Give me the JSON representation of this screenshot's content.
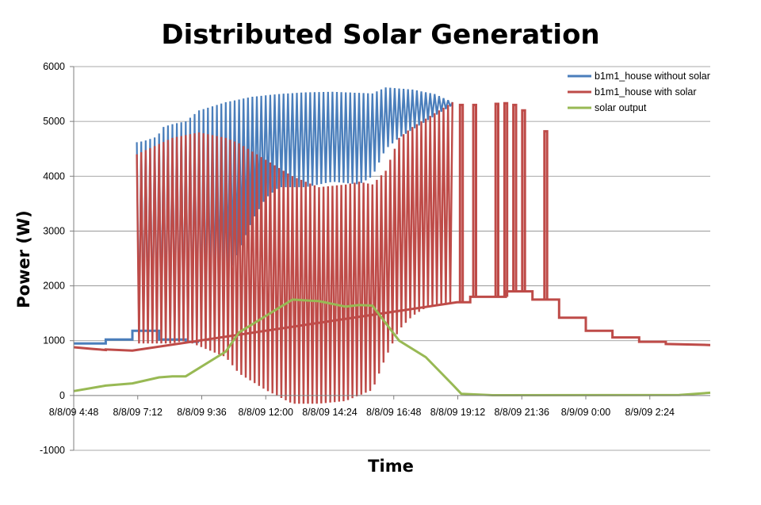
{
  "chart_data": {
    "type": "line",
    "title": "Distributed Solar Generation",
    "xlabel": "Time",
    "ylabel": "Power (W)",
    "ylim": [
      -1000,
      6000
    ],
    "xlim": [
      "8/8/09 4:48",
      "8/9/09 4:40"
    ],
    "yticks": [
      "-1000",
      "0",
      "1000",
      "2000",
      "3000",
      "4000",
      "5000",
      "6000"
    ],
    "xticks": [
      "8/8/09 4:48",
      "8/8/09 7:12",
      "8/8/09 9:36",
      "8/8/09 12:00",
      "8/8/09 14:24",
      "8/8/09 16:48",
      "8/8/09 19:12",
      "8/8/09 21:36",
      "8/9/09 0:00",
      "8/9/09 2:24"
    ],
    "grid": "horizontal",
    "legend_position": "top-right",
    "series": [
      {
        "name": "b1m1_house without solar",
        "color": "#4a7ebb",
        "baseline": [
          [
            "8/8/09 4:48",
            950
          ],
          [
            "8/8/09 6:00",
            950
          ],
          [
            "8/8/09 6:00",
            1020
          ],
          [
            "8/8/09 7:00",
            1020
          ],
          [
            "8/8/09 7:00",
            1180
          ],
          [
            "8/8/09 8:00",
            1180
          ],
          [
            "8/8/09 8:00",
            1020
          ],
          [
            "8/8/09 9:00",
            1020
          ],
          [
            "8/8/09 9:00",
            980
          ],
          [
            "8/8/09 9:30",
            980
          ]
        ],
        "peaks": [
          [
            "8/8/09 7:10",
            4620
          ],
          [
            "8/8/09 7:25",
            4640
          ],
          [
            "8/8/09 7:40",
            4680
          ],
          [
            "8/8/09 7:55",
            4720
          ],
          [
            "8/8/09 8:10",
            4900
          ],
          [
            "8/8/09 8:30",
            4950
          ],
          [
            "8/8/09 9:00",
            5000
          ],
          [
            "8/8/09 9:30",
            5200
          ],
          [
            "8/8/09 10:30",
            5350
          ],
          [
            "8/8/09 11:30",
            5450
          ],
          [
            "8/8/09 12:30",
            5500
          ],
          [
            "8/8/09 13:30",
            5530
          ],
          [
            "8/8/09 14:30",
            5540
          ],
          [
            "8/8/09 15:30",
            5520
          ],
          [
            "8/8/09 16:00",
            5510
          ],
          [
            "8/8/09 16:30",
            5620
          ],
          [
            "8/8/09 17:30",
            5580
          ],
          [
            "8/8/09 18:20",
            5500
          ],
          [
            "8/8/09 19:00",
            5350
          ]
        ],
        "troughs": [
          [
            "8/8/09 7:10",
            1180
          ],
          [
            "8/8/09 8:00",
            1180
          ],
          [
            "8/8/09 9:30",
            1000
          ],
          [
            "8/8/09 10:30",
            2100
          ],
          [
            "8/8/09 11:30",
            3200
          ],
          [
            "8/8/09 12:00",
            3600
          ],
          [
            "8/8/09 12:30",
            3800
          ],
          [
            "8/8/09 13:30",
            3800
          ],
          [
            "8/8/09 14:30",
            3900
          ],
          [
            "8/8/09 15:30",
            3850
          ],
          [
            "8/8/09 16:00",
            4000
          ],
          [
            "8/8/09 16:30",
            4500
          ],
          [
            "8/8/09 17:00",
            4700
          ],
          [
            "8/8/09 18:00",
            5000
          ],
          [
            "8/8/09 19:00",
            5300
          ]
        ]
      },
      {
        "name": "b1m1_house with solar",
        "color": "#be4b48",
        "points": [
          [
            "8/8/09 4:48",
            880
          ],
          [
            "8/8/09 5:30",
            850
          ],
          [
            "8/8/09 6:00",
            830
          ],
          [
            "8/8/09 6:00",
            840
          ],
          [
            "8/8/09 7:00",
            820
          ],
          [
            "8/8/09 19:10",
            1700
          ],
          [
            "8/8/09 19:40",
            1700
          ],
          [
            "8/8/09 19:40",
            1800
          ],
          [
            "8/8/09 21:00",
            1800
          ],
          [
            "8/8/09 21:00",
            1900
          ],
          [
            "8/8/09 22:00",
            1900
          ],
          [
            "8/8/09 22:00",
            1750
          ],
          [
            "8/8/09 23:00",
            1750
          ],
          [
            "8/8/09 23:00",
            1420
          ],
          [
            "8/9/09 0:00",
            1420
          ],
          [
            "8/9/09 0:00",
            1180
          ],
          [
            "8/9/09 1:00",
            1180
          ],
          [
            "8/9/09 1:00",
            1060
          ],
          [
            "8/9/09 2:00",
            1060
          ],
          [
            "8/9/09 2:00",
            980
          ],
          [
            "8/9/09 3:00",
            980
          ],
          [
            "8/9/09 3:00",
            940
          ],
          [
            "8/9/09 4:40",
            920
          ]
        ],
        "peaks": [
          [
            "8/8/09 7:10",
            4400
          ],
          [
            "8/8/09 8:30",
            4700
          ],
          [
            "8/8/09 9:30",
            4800
          ],
          [
            "8/8/09 10:30",
            4700
          ],
          [
            "8/8/09 11:00",
            4600
          ],
          [
            "8/8/09 12:00",
            4300
          ],
          [
            "8/8/09 13:00",
            4000
          ],
          [
            "8/8/09 14:00",
            3800
          ],
          [
            "8/8/09 15:00",
            3850
          ],
          [
            "8/8/09 15:30",
            3900
          ],
          [
            "8/8/09 16:00",
            3850
          ],
          [
            "8/8/09 16:30",
            4100
          ],
          [
            "8/8/09 17:00",
            4700
          ],
          [
            "8/8/09 17:30",
            4900
          ],
          [
            "8/8/09 18:30",
            5200
          ],
          [
            "8/8/09 19:00",
            5350
          ]
        ],
        "troughs": [
          [
            "8/8/09 7:10",
            950
          ],
          [
            "8/8/09 8:30",
            950
          ],
          [
            "8/8/09 9:00",
            1000
          ],
          [
            "8/8/09 10:30",
            700
          ],
          [
            "8/8/09 11:00",
            400
          ],
          [
            "8/8/09 12:00",
            100
          ],
          [
            "8/8/09 13:00",
            -150
          ],
          [
            "8/8/09 14:00",
            -150
          ],
          [
            "8/8/09 15:00",
            -100
          ],
          [
            "8/8/09 15:30",
            0
          ],
          [
            "8/8/09 16:00",
            100
          ],
          [
            "8/8/09 16:30",
            700
          ],
          [
            "8/8/09 17:00",
            1200
          ],
          [
            "8/8/09 17:30",
            1450
          ],
          [
            "8/8/09 18:00",
            1600
          ],
          [
            "8/8/09 19:00",
            1700
          ]
        ],
        "evening_spikes": [
          [
            "8/8/09 19:20",
            5300
          ],
          [
            "8/8/09 19:50",
            5300
          ],
          [
            "8/8/09 20:40",
            5320
          ],
          [
            "8/8/09 21:00",
            5330
          ],
          [
            "8/8/09 21:20",
            5300
          ],
          [
            "8/8/09 21:40",
            5200
          ],
          [
            "8/8/09 22:30",
            4820
          ]
        ]
      },
      {
        "name": "solar output",
        "color": "#98b954",
        "points": [
          [
            "8/8/09 4:48",
            80
          ],
          [
            "8/8/09 6:00",
            180
          ],
          [
            "8/8/09 7:00",
            220
          ],
          [
            "8/8/09 8:00",
            330
          ],
          [
            "8/8/09 8:30",
            350
          ],
          [
            "8/8/09 9:00",
            350
          ],
          [
            "8/8/09 9:30",
            500
          ],
          [
            "8/8/09 10:30",
            800
          ],
          [
            "8/8/09 11:00",
            1150
          ],
          [
            "8/8/09 12:00",
            1450
          ],
          [
            "8/8/09 12:30",
            1600
          ],
          [
            "8/8/09 13:00",
            1750
          ],
          [
            "8/8/09 14:00",
            1720
          ],
          [
            "8/8/09 15:00",
            1620
          ],
          [
            "8/8/09 15:30",
            1650
          ],
          [
            "8/8/09 16:00",
            1640
          ],
          [
            "8/8/09 17:00",
            1000
          ],
          [
            "8/8/09 18:00",
            700
          ],
          [
            "8/8/09 19:00",
            200
          ],
          [
            "8/8/09 19:20",
            30
          ],
          [
            "8/8/09 20:30",
            5
          ],
          [
            "8/9/09 3:30",
            10
          ],
          [
            "8/9/09 4:40",
            50
          ]
        ]
      }
    ]
  }
}
